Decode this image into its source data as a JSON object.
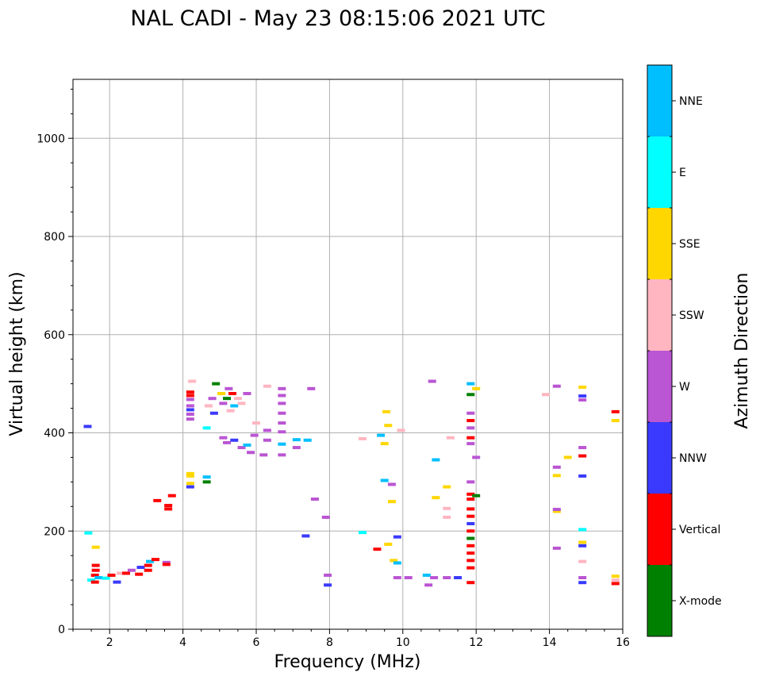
{
  "chart_data": {
    "type": "scatter",
    "title": "NAL CADI - May 23 08:15:06 2021 UTC",
    "xlabel": "Frequency (MHz)",
    "ylabel": "Virtual height (km)",
    "xlim": [
      1,
      16
    ],
    "ylim": [
      0,
      1120
    ],
    "xticks": [
      2,
      4,
      6,
      8,
      10,
      12,
      14,
      16
    ],
    "yticks": [
      0,
      200,
      400,
      600,
      800,
      1000
    ],
    "grid": true,
    "colorbar": {
      "label": "Azimuth Direction",
      "categories": [
        {
          "name": "X-mode",
          "color": "#008000"
        },
        {
          "name": "Vertical",
          "color": "#ff0000"
        },
        {
          "name": "NNW",
          "color": "#3a3aff"
        },
        {
          "name": "W",
          "color": "#ba55d3"
        },
        {
          "name": "SSW",
          "color": "#ffb6c1"
        },
        {
          "name": "SSE",
          "color": "#ffd700"
        },
        {
          "name": "E",
          "color": "#00ffff"
        },
        {
          "name": "NNE",
          "color": "#00bfff"
        }
      ]
    },
    "points": [
      {
        "f": 1.4,
        "h": 413,
        "c": "NNW"
      },
      {
        "f": 1.42,
        "h": 196,
        "c": "E"
      },
      {
        "f": 1.62,
        "h": 167,
        "c": "SSE"
      },
      {
        "f": 1.5,
        "h": 100,
        "c": "E"
      },
      {
        "f": 1.6,
        "h": 96,
        "c": "Vertical"
      },
      {
        "f": 1.6,
        "h": 110,
        "c": "Vertical"
      },
      {
        "f": 1.62,
        "h": 120,
        "c": "Vertical"
      },
      {
        "f": 1.62,
        "h": 130,
        "c": "Vertical"
      },
      {
        "f": 1.7,
        "h": 105,
        "c": "NNE"
      },
      {
        "f": 1.9,
        "h": 104,
        "c": "E"
      },
      {
        "f": 2.05,
        "h": 110,
        "c": "Vertical"
      },
      {
        "f": 2.2,
        "h": 96,
        "c": "NNW"
      },
      {
        "f": 2.3,
        "h": 114,
        "c": "SSW"
      },
      {
        "f": 2.45,
        "h": 114,
        "c": "Vertical"
      },
      {
        "f": 2.6,
        "h": 120,
        "c": "W"
      },
      {
        "f": 2.8,
        "h": 112,
        "c": "Vertical"
      },
      {
        "f": 2.85,
        "h": 126,
        "c": "NNW"
      },
      {
        "f": 3.05,
        "h": 120,
        "c": "Vertical"
      },
      {
        "f": 3.05,
        "h": 130,
        "c": "Vertical"
      },
      {
        "f": 3.1,
        "h": 138,
        "c": "NNE"
      },
      {
        "f": 3.25,
        "h": 142,
        "c": "Vertical"
      },
      {
        "f": 3.55,
        "h": 136,
        "c": "W"
      },
      {
        "f": 3.55,
        "h": 132,
        "c": "Vertical"
      },
      {
        "f": 3.3,
        "h": 262,
        "c": "Vertical"
      },
      {
        "f": 3.6,
        "h": 245,
        "c": "Vertical"
      },
      {
        "f": 3.6,
        "h": 252,
        "c": "Vertical"
      },
      {
        "f": 3.7,
        "h": 272,
        "c": "Vertical"
      },
      {
        "f": 4.2,
        "h": 290,
        "c": "NNW"
      },
      {
        "f": 4.2,
        "h": 297,
        "c": "SSE"
      },
      {
        "f": 4.2,
        "h": 312,
        "c": "SSE"
      },
      {
        "f": 4.2,
        "h": 317,
        "c": "SSE"
      },
      {
        "f": 4.65,
        "h": 300,
        "c": "X-mode"
      },
      {
        "f": 4.65,
        "h": 310,
        "c": "NNE"
      },
      {
        "f": 4.2,
        "h": 428,
        "c": "W"
      },
      {
        "f": 4.2,
        "h": 438,
        "c": "W"
      },
      {
        "f": 4.2,
        "h": 447,
        "c": "NNW"
      },
      {
        "f": 4.2,
        "h": 455,
        "c": "W"
      },
      {
        "f": 4.2,
        "h": 468,
        "c": "W"
      },
      {
        "f": 4.2,
        "h": 476,
        "c": "Vertical"
      },
      {
        "f": 4.2,
        "h": 483,
        "c": "Vertical"
      },
      {
        "f": 4.25,
        "h": 505,
        "c": "SSW"
      },
      {
        "f": 4.65,
        "h": 410,
        "c": "E"
      },
      {
        "f": 4.7,
        "h": 455,
        "c": "SSW"
      },
      {
        "f": 4.8,
        "h": 470,
        "c": "W"
      },
      {
        "f": 4.85,
        "h": 440,
        "c": "NNW"
      },
      {
        "f": 4.9,
        "h": 500,
        "c": "X-mode"
      },
      {
        "f": 5.05,
        "h": 480,
        "c": "SSE"
      },
      {
        "f": 5.1,
        "h": 460,
        "c": "W"
      },
      {
        "f": 5.2,
        "h": 470,
        "c": "X-mode"
      },
      {
        "f": 5.25,
        "h": 490,
        "c": "W"
      },
      {
        "f": 5.3,
        "h": 445,
        "c": "SSW"
      },
      {
        "f": 5.35,
        "h": 480,
        "c": "Vertical"
      },
      {
        "f": 5.4,
        "h": 455,
        "c": "NNE"
      },
      {
        "f": 5.5,
        "h": 470,
        "c": "SSW"
      },
      {
        "f": 5.6,
        "h": 460,
        "c": "SSW"
      },
      {
        "f": 5.75,
        "h": 480,
        "c": "W"
      },
      {
        "f": 5.1,
        "h": 390,
        "c": "W"
      },
      {
        "f": 5.2,
        "h": 380,
        "c": "W"
      },
      {
        "f": 5.4,
        "h": 385,
        "c": "NNW"
      },
      {
        "f": 5.6,
        "h": 370,
        "c": "W"
      },
      {
        "f": 5.75,
        "h": 375,
        "c": "NNE"
      },
      {
        "f": 5.85,
        "h": 360,
        "c": "W"
      },
      {
        "f": 5.95,
        "h": 395,
        "c": "W"
      },
      {
        "f": 6.0,
        "h": 420,
        "c": "SSW"
      },
      {
        "f": 6.2,
        "h": 355,
        "c": "W"
      },
      {
        "f": 6.3,
        "h": 385,
        "c": "W"
      },
      {
        "f": 6.3,
        "h": 405,
        "c": "W"
      },
      {
        "f": 6.3,
        "h": 495,
        "c": "SSW"
      },
      {
        "f": 6.7,
        "h": 355,
        "c": "W"
      },
      {
        "f": 6.7,
        "h": 377,
        "c": "NNE"
      },
      {
        "f": 6.7,
        "h": 402,
        "c": "W"
      },
      {
        "f": 6.7,
        "h": 420,
        "c": "W"
      },
      {
        "f": 6.7,
        "h": 440,
        "c": "W"
      },
      {
        "f": 6.7,
        "h": 460,
        "c": "W"
      },
      {
        "f": 6.7,
        "h": 476,
        "c": "W"
      },
      {
        "f": 6.7,
        "h": 490,
        "c": "W"
      },
      {
        "f": 7.1,
        "h": 386,
        "c": "NNE"
      },
      {
        "f": 7.1,
        "h": 370,
        "c": "W"
      },
      {
        "f": 7.4,
        "h": 385,
        "c": "NNE"
      },
      {
        "f": 7.5,
        "h": 490,
        "c": "W"
      },
      {
        "f": 7.6,
        "h": 265,
        "c": "W"
      },
      {
        "f": 7.35,
        "h": 190,
        "c": "NNW"
      },
      {
        "f": 7.9,
        "h": 228,
        "c": "W"
      },
      {
        "f": 7.95,
        "h": 110,
        "c": "W"
      },
      {
        "f": 7.95,
        "h": 90,
        "c": "NNW"
      },
      {
        "f": 8.9,
        "h": 388,
        "c": "SSW"
      },
      {
        "f": 8.9,
        "h": 197,
        "c": "E"
      },
      {
        "f": 9.3,
        "h": 163,
        "c": "Vertical"
      },
      {
        "f": 9.4,
        "h": 395,
        "c": "NNE"
      },
      {
        "f": 9.5,
        "h": 378,
        "c": "SSE"
      },
      {
        "f": 9.55,
        "h": 443,
        "c": "SSE"
      },
      {
        "f": 9.6,
        "h": 415,
        "c": "SSE"
      },
      {
        "f": 9.5,
        "h": 303,
        "c": "NNE"
      },
      {
        "f": 9.7,
        "h": 295,
        "c": "W"
      },
      {
        "f": 9.7,
        "h": 260,
        "c": "SSE"
      },
      {
        "f": 9.6,
        "h": 173,
        "c": "SSE"
      },
      {
        "f": 9.75,
        "h": 140,
        "c": "SSE"
      },
      {
        "f": 9.85,
        "h": 135,
        "c": "NNE"
      },
      {
        "f": 9.85,
        "h": 188,
        "c": "NNW"
      },
      {
        "f": 9.85,
        "h": 105,
        "c": "W"
      },
      {
        "f": 10.15,
        "h": 105,
        "c": "W"
      },
      {
        "f": 9.95,
        "h": 405,
        "c": "SSW"
      },
      {
        "f": 10.65,
        "h": 110,
        "c": "NNE"
      },
      {
        "f": 10.7,
        "h": 90,
        "c": "W"
      },
      {
        "f": 10.8,
        "h": 505,
        "c": "W"
      },
      {
        "f": 10.85,
        "h": 105,
        "c": "W"
      },
      {
        "f": 10.9,
        "h": 345,
        "c": "NNE"
      },
      {
        "f": 10.9,
        "h": 268,
        "c": "SSE"
      },
      {
        "f": 11.2,
        "h": 290,
        "c": "SSE"
      },
      {
        "f": 11.2,
        "h": 246,
        "c": "SSW"
      },
      {
        "f": 11.2,
        "h": 228,
        "c": "SSW"
      },
      {
        "f": 11.2,
        "h": 105,
        "c": "W"
      },
      {
        "f": 11.3,
        "h": 390,
        "c": "SSW"
      },
      {
        "f": 11.5,
        "h": 105,
        "c": "NNW"
      },
      {
        "f": 11.85,
        "h": 500,
        "c": "NNE"
      },
      {
        "f": 11.85,
        "h": 478,
        "c": "X-mode"
      },
      {
        "f": 11.85,
        "h": 440,
        "c": "W"
      },
      {
        "f": 11.85,
        "h": 425,
        "c": "Vertical"
      },
      {
        "f": 11.85,
        "h": 410,
        "c": "W"
      },
      {
        "f": 11.85,
        "h": 390,
        "c": "Vertical"
      },
      {
        "f": 11.85,
        "h": 378,
        "c": "W"
      },
      {
        "f": 11.85,
        "h": 300,
        "c": "W"
      },
      {
        "f": 11.85,
        "h": 275,
        "c": "Vertical"
      },
      {
        "f": 11.85,
        "h": 265,
        "c": "Vertical"
      },
      {
        "f": 11.85,
        "h": 245,
        "c": "Vertical"
      },
      {
        "f": 11.85,
        "h": 230,
        "c": "Vertical"
      },
      {
        "f": 11.85,
        "h": 215,
        "c": "NNW"
      },
      {
        "f": 11.85,
        "h": 200,
        "c": "Vertical"
      },
      {
        "f": 11.85,
        "h": 185,
        "c": "X-mode"
      },
      {
        "f": 11.85,
        "h": 170,
        "c": "Vertical"
      },
      {
        "f": 11.85,
        "h": 155,
        "c": "Vertical"
      },
      {
        "f": 11.85,
        "h": 140,
        "c": "Vertical"
      },
      {
        "f": 11.85,
        "h": 125,
        "c": "Vertical"
      },
      {
        "f": 11.85,
        "h": 95,
        "c": "Vertical"
      },
      {
        "f": 12.0,
        "h": 490,
        "c": "SSE"
      },
      {
        "f": 12.0,
        "h": 350,
        "c": "W"
      },
      {
        "f": 12.0,
        "h": 272,
        "c": "X-mode"
      },
      {
        "f": 13.9,
        "h": 478,
        "c": "SSW"
      },
      {
        "f": 14.2,
        "h": 495,
        "c": "W"
      },
      {
        "f": 14.2,
        "h": 330,
        "c": "W"
      },
      {
        "f": 14.2,
        "h": 313,
        "c": "SSE"
      },
      {
        "f": 14.2,
        "h": 240,
        "c": "SSE"
      },
      {
        "f": 14.2,
        "h": 244,
        "c": "W"
      },
      {
        "f": 14.2,
        "h": 165,
        "c": "W"
      },
      {
        "f": 14.5,
        "h": 350,
        "c": "SSE"
      },
      {
        "f": 14.9,
        "h": 493,
        "c": "SSE"
      },
      {
        "f": 14.9,
        "h": 475,
        "c": "NNW"
      },
      {
        "f": 14.9,
        "h": 467,
        "c": "W"
      },
      {
        "f": 14.9,
        "h": 370,
        "c": "W"
      },
      {
        "f": 14.9,
        "h": 353,
        "c": "Vertical"
      },
      {
        "f": 14.9,
        "h": 312,
        "c": "NNW"
      },
      {
        "f": 14.9,
        "h": 203,
        "c": "E"
      },
      {
        "f": 14.9,
        "h": 177,
        "c": "SSE"
      },
      {
        "f": 14.9,
        "h": 170,
        "c": "NNW"
      },
      {
        "f": 14.9,
        "h": 138,
        "c": "SSW"
      },
      {
        "f": 14.9,
        "h": 105,
        "c": "W"
      },
      {
        "f": 14.9,
        "h": 95,
        "c": "NNW"
      },
      {
        "f": 15.8,
        "h": 443,
        "c": "Vertical"
      },
      {
        "f": 15.8,
        "h": 425,
        "c": "SSE"
      },
      {
        "f": 15.8,
        "h": 108,
        "c": "SSE"
      },
      {
        "f": 15.8,
        "h": 100,
        "c": "SSW"
      },
      {
        "f": 15.8,
        "h": 93,
        "c": "Vertical"
      }
    ]
  }
}
